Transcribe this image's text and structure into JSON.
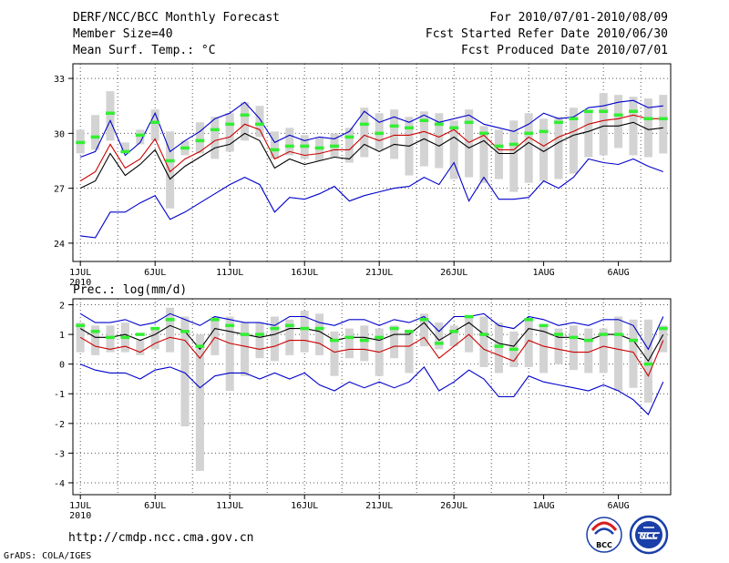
{
  "header": {
    "left_line1": "DERF/NCC/BCC Monthly Forecast",
    "left_line2": "Member Size=40",
    "left_line3": "Mean Surf. Temp.: °C",
    "right_line1": "For 2010/07/01-2010/08/09",
    "right_line2": "Fcst Started Refer Date 2010/06/30",
    "right_line3": "Fcst Produced Date 2010/07/01"
  },
  "footer": {
    "url": "http://cmdp.ncc.cma.gov.cn",
    "credit": "GrADS: COLA/IGES",
    "logo_bcc": "BCC",
    "logo_ncc": "NCC"
  },
  "colors": {
    "box": "#d3d3d3",
    "mean": "#000000",
    "ctrl": "#cc0000",
    "env": "#0000cc",
    "marker": "#33ee33",
    "grid": "#555555"
  },
  "chart_data": [
    {
      "type": "box-line",
      "title": "Mean Surf. Temp.: °C",
      "x": [
        1,
        2,
        3,
        4,
        5,
        6,
        7,
        8,
        9,
        10,
        11,
        12,
        13,
        14,
        15,
        16,
        17,
        18,
        19,
        20,
        21,
        22,
        23,
        24,
        25,
        26,
        27,
        28,
        29,
        30,
        31,
        32,
        33,
        34,
        35,
        36,
        37,
        38,
        39,
        40
      ],
      "xticks": [
        1,
        6,
        11,
        16,
        21,
        26,
        32,
        37
      ],
      "xtick_labels": [
        "1JUL",
        "6JUL",
        "11JUL",
        "16JUL",
        "21JUL",
        "26JUL",
        "1AUG",
        "6AUG"
      ],
      "xtick_year": "2010",
      "xlim": [
        0.5,
        40.5
      ],
      "ylim": [
        23,
        33.8
      ],
      "yticks": [
        24,
        27,
        30,
        33
      ],
      "ytick_labels": [
        "24",
        "27",
        "30",
        "33"
      ],
      "box_low": [
        28.9,
        29.1,
        29.6,
        28.9,
        29.4,
        29.6,
        25.9,
        28.8,
        28.9,
        28.6,
        29.0,
        29.6,
        29.8,
        28.6,
        28.8,
        28.6,
        28.5,
        28.7,
        28.4,
        28.7,
        29.1,
        28.6,
        27.7,
        28.2,
        28.1,
        27.5,
        27.6,
        27.3,
        27.5,
        26.8,
        27.3,
        27.4,
        27.5,
        27.8,
        28.7,
        28.8,
        29.2,
        28.8,
        28.7,
        28.9
      ],
      "box_high": [
        30.2,
        31.0,
        32.3,
        29.5,
        30.2,
        31.3,
        30.1,
        29.6,
        30.6,
        30.9,
        31.1,
        31.7,
        31.5,
        30.1,
        30.3,
        29.9,
        29.8,
        30.0,
        30.3,
        31.4,
        31.1,
        31.3,
        30.9,
        31.2,
        31.1,
        30.7,
        31.3,
        30.4,
        30.2,
        30.7,
        31.1,
        30.8,
        30.9,
        31.4,
        31.2,
        32.2,
        32.1,
        32.0,
        31.9,
        32.1
      ],
      "marker": [
        29.5,
        29.8,
        31.1,
        29.0,
        29.9,
        30.6,
        28.5,
        29.2,
        29.6,
        30.2,
        30.5,
        31.0,
        30.5,
        29.1,
        29.3,
        29.3,
        29.2,
        29.3,
        29.8,
        30.5,
        30.0,
        30.4,
        30.3,
        30.7,
        30.5,
        30.3,
        30.6,
        30.0,
        29.3,
        29.4,
        30.0,
        30.1,
        30.6,
        30.8,
        31.2,
        31.2,
        31.0,
        31.2,
        30.8,
        30.8
      ],
      "series": [
        {
          "name": "env_max",
          "color": "#0000cc",
          "values": [
            28.7,
            29.0,
            30.7,
            28.8,
            29.5,
            31.1,
            29.0,
            29.6,
            30.1,
            30.8,
            31.1,
            31.7,
            30.8,
            29.5,
            29.9,
            29.6,
            29.8,
            29.7,
            30.1,
            31.2,
            30.6,
            30.9,
            30.6,
            31.0,
            30.6,
            30.8,
            31.0,
            30.5,
            30.3,
            30.1,
            30.5,
            31.1,
            30.8,
            30.9,
            31.4,
            31.5,
            31.7,
            31.8,
            31.4,
            31.5
          ]
        },
        {
          "name": "ctrl",
          "color": "#cc0000",
          "values": [
            27.4,
            27.9,
            29.4,
            28.1,
            28.6,
            29.7,
            27.9,
            28.6,
            29.0,
            29.6,
            29.8,
            30.5,
            30.2,
            28.6,
            29.0,
            28.8,
            28.9,
            29.1,
            29.1,
            29.9,
            29.6,
            29.9,
            29.9,
            30.1,
            29.8,
            30.2,
            29.5,
            29.9,
            29.1,
            29.1,
            29.8,
            29.3,
            29.8,
            30.1,
            30.5,
            30.7,
            30.8,
            31.0,
            30.8,
            30.8
          ]
        },
        {
          "name": "ensemble_mean",
          "color": "#000000",
          "values": [
            27.0,
            27.4,
            28.9,
            27.7,
            28.3,
            29.1,
            27.5,
            28.2,
            28.7,
            29.2,
            29.4,
            30.0,
            29.6,
            28.1,
            28.6,
            28.3,
            28.5,
            28.7,
            28.6,
            29.4,
            29.0,
            29.4,
            29.3,
            29.7,
            29.3,
            29.8,
            29.2,
            29.6,
            28.9,
            28.9,
            29.5,
            29.0,
            29.5,
            29.9,
            30.1,
            30.4,
            30.4,
            30.6,
            30.2,
            30.3
          ]
        },
        {
          "name": "env_min",
          "color": "#0000cc",
          "values": [
            24.4,
            24.3,
            25.7,
            25.7,
            26.2,
            26.6,
            25.3,
            25.7,
            26.2,
            26.7,
            27.2,
            27.6,
            27.2,
            25.7,
            26.5,
            26.4,
            26.7,
            27.1,
            26.3,
            26.6,
            26.8,
            27.0,
            27.1,
            27.6,
            27.2,
            28.4,
            26.3,
            27.6,
            26.4,
            26.4,
            26.5,
            27.4,
            27.0,
            27.6,
            28.6,
            28.4,
            28.3,
            28.6,
            28.2,
            27.9
          ]
        }
      ]
    },
    {
      "type": "box-line",
      "title": "Prec.: log(mm/d)",
      "x": [
        1,
        2,
        3,
        4,
        5,
        6,
        7,
        8,
        9,
        10,
        11,
        12,
        13,
        14,
        15,
        16,
        17,
        18,
        19,
        20,
        21,
        22,
        23,
        24,
        25,
        26,
        27,
        28,
        29,
        30,
        31,
        32,
        33,
        34,
        35,
        36,
        37,
        38,
        39,
        40
      ],
      "xticks": [
        1,
        6,
        11,
        16,
        21,
        26,
        32,
        37
      ],
      "xtick_labels": [
        "1JUL",
        "6JUL",
        "11JUL",
        "16JUL",
        "21JUL",
        "26JUL",
        "1AUG",
        "6AUG"
      ],
      "xtick_year": "2010",
      "xlim": [
        0.5,
        40.5
      ],
      "ylim": [
        -4.4,
        2.2
      ],
      "yticks": [
        -4,
        -3,
        -2,
        -1,
        0,
        1,
        2
      ],
      "ytick_labels": [
        "-4",
        "-3",
        "-2",
        "-1",
        "0",
        "1",
        "2"
      ],
      "box_low": [
        0.4,
        0.3,
        0.4,
        0.4,
        0.3,
        0.5,
        0.4,
        -2.1,
        -3.6,
        0.3,
        -0.9,
        -0.4,
        0.2,
        0.1,
        0.3,
        0.4,
        0.3,
        -0.4,
        0.2,
        0.1,
        -0.4,
        0.2,
        -0.3,
        0.6,
        0.5,
        0.6,
        0.4,
        -0.1,
        -0.3,
        -0.1,
        -0.1,
        -0.3,
        0.0,
        -0.2,
        -0.3,
        -0.3,
        -0.9,
        -0.8,
        -1.3,
        0.4
      ],
      "box_high": [
        1.4,
        1.3,
        1.3,
        1.4,
        0.8,
        1.2,
        1.9,
        1.6,
        1.0,
        1.6,
        1.6,
        1.4,
        1.4,
        1.6,
        1.5,
        1.8,
        1.7,
        1.1,
        1.2,
        1.3,
        1.2,
        1.3,
        1.1,
        1.7,
        1.4,
        1.3,
        1.6,
        1.6,
        1.4,
        1.1,
        1.5,
        1.3,
        1.2,
        1.3,
        1.2,
        1.2,
        1.6,
        1.5,
        1.5,
        1.3
      ],
      "marker": [
        1.3,
        1.1,
        0.9,
        0.9,
        1.0,
        1.2,
        1.5,
        1.1,
        0.6,
        1.5,
        1.3,
        1.0,
        1.0,
        1.2,
        1.3,
        1.2,
        1.2,
        0.8,
        0.9,
        0.8,
        0.9,
        1.2,
        1.1,
        1.5,
        0.7,
        1.1,
        1.6,
        1.0,
        0.6,
        0.5,
        1.5,
        1.3,
        1.0,
        0.9,
        0.8,
        1.0,
        1.0,
        0.8,
        0.0,
        1.2
      ],
      "series": [
        {
          "name": "env_max",
          "color": "#0000cc",
          "values": [
            1.7,
            1.4,
            1.4,
            1.5,
            1.3,
            1.4,
            1.7,
            1.5,
            1.3,
            1.6,
            1.5,
            1.4,
            1.4,
            1.3,
            1.6,
            1.6,
            1.4,
            1.3,
            1.5,
            1.5,
            1.3,
            1.5,
            1.4,
            1.6,
            1.1,
            1.6,
            1.6,
            1.7,
            1.3,
            1.2,
            1.6,
            1.5,
            1.3,
            1.4,
            1.3,
            1.5,
            1.5,
            1.3,
            0.5,
            1.6
          ]
        },
        {
          "name": "ensemble_mean",
          "color": "#000000",
          "values": [
            1.2,
            0.9,
            0.9,
            1.0,
            0.8,
            1.0,
            1.3,
            1.1,
            0.5,
            1.2,
            1.1,
            1.0,
            0.9,
            1.0,
            1.2,
            1.2,
            1.1,
            0.8,
            0.9,
            0.9,
            0.8,
            1.0,
            1.0,
            1.4,
            0.8,
            1.1,
            1.4,
            1.0,
            0.7,
            0.6,
            1.2,
            1.1,
            0.9,
            0.9,
            0.8,
            1.0,
            1.0,
            0.8,
            0.1,
            1.0
          ]
        },
        {
          "name": "ctrl",
          "color": "#cc0000",
          "values": [
            0.9,
            0.6,
            0.5,
            0.6,
            0.4,
            0.7,
            0.9,
            0.8,
            0.2,
            0.9,
            0.7,
            0.6,
            0.5,
            0.6,
            0.8,
            0.8,
            0.7,
            0.4,
            0.5,
            0.5,
            0.4,
            0.6,
            0.6,
            0.9,
            0.2,
            0.6,
            1.0,
            0.5,
            0.3,
            0.1,
            0.8,
            0.6,
            0.5,
            0.4,
            0.4,
            0.6,
            0.5,
            0.4,
            -0.4,
            0.8
          ]
        },
        {
          "name": "env_min",
          "color": "#0000cc",
          "values": [
            0.0,
            -0.2,
            -0.3,
            -0.3,
            -0.5,
            -0.2,
            -0.1,
            -0.3,
            -0.8,
            -0.4,
            -0.3,
            -0.3,
            -0.5,
            -0.3,
            -0.5,
            -0.3,
            -0.7,
            -0.9,
            -0.6,
            -0.8,
            -0.6,
            -0.8,
            -0.6,
            -0.1,
            -0.9,
            -0.6,
            -0.2,
            -0.5,
            -1.1,
            -1.1,
            -0.4,
            -0.6,
            -0.7,
            -0.8,
            -0.9,
            -0.7,
            -0.9,
            -1.2,
            -1.7,
            -0.6
          ]
        }
      ]
    }
  ]
}
